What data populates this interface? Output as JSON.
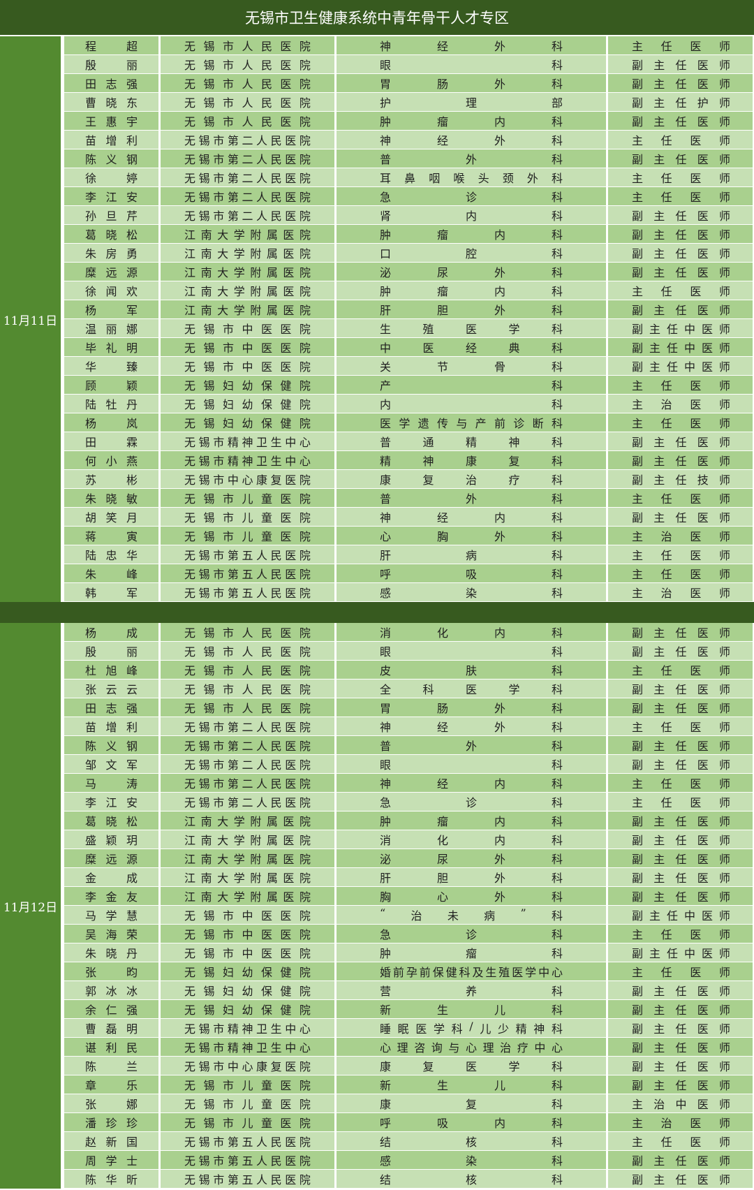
{
  "title": "无锡市卫生健康系统中青年骨干人才专区",
  "sections": [
    {
      "date": "11月11日",
      "rows": [
        {
          "name": "程超",
          "hospital": "无锡市人民医院",
          "dept": "神经外科",
          "title": "主任医师"
        },
        {
          "name": "殷丽",
          "hospital": "无锡市人民医院",
          "dept": "眼科",
          "title": "副主任医师"
        },
        {
          "name": "田志强",
          "hospital": "无锡市人民医院",
          "dept": "胃肠外科",
          "title": "副主任医师"
        },
        {
          "name": "曹晓东",
          "hospital": "无锡市人民医院",
          "dept": "护理部",
          "title": "副主任护师"
        },
        {
          "name": "王惠宇",
          "hospital": "无锡市人民医院",
          "dept": "肿瘤内科",
          "title": "副主任医师"
        },
        {
          "name": "苗增利",
          "hospital": "无锡市第二人民医院",
          "dept": "神经外科",
          "title": "主任医师"
        },
        {
          "name": "陈义钢",
          "hospital": "无锡市第二人民医院",
          "dept": "普外科",
          "title": "副主任医师"
        },
        {
          "name": "徐婷",
          "hospital": "无锡市第二人民医院",
          "dept": "耳鼻咽喉头颈外科",
          "title": "主任医师"
        },
        {
          "name": "李江安",
          "hospital": "无锡市第二人民医院",
          "dept": "急诊科",
          "title": "主任医师"
        },
        {
          "name": "孙旦芹",
          "hospital": "无锡市第二人民医院",
          "dept": "肾内科",
          "title": "副主任医师"
        },
        {
          "name": "葛晓松",
          "hospital": "江南大学附属医院",
          "dept": "肿瘤内科",
          "title": "副主任医师"
        },
        {
          "name": "朱房勇",
          "hospital": "江南大学附属医院",
          "dept": "口腔科",
          "title": "副主任医师"
        },
        {
          "name": "糜远源",
          "hospital": "江南大学附属医院",
          "dept": "泌尿外科",
          "title": "副主任医师"
        },
        {
          "name": "徐闻欢",
          "hospital": "江南大学附属医院",
          "dept": "肿瘤内科",
          "title": "主任医师"
        },
        {
          "name": "杨军",
          "hospital": "江南大学附属医院",
          "dept": "肝胆外科",
          "title": "副主任医师"
        },
        {
          "name": "温丽娜",
          "hospital": "无锡市中医医院",
          "dept": "生殖医学科",
          "title": "副主任中医师"
        },
        {
          "name": "毕礼明",
          "hospital": "无锡市中医医院",
          "dept": "中医经典科",
          "title": "副主任中医师"
        },
        {
          "name": "华臻",
          "hospital": "无锡市中医医院",
          "dept": "关节骨科",
          "title": "副主任中医师"
        },
        {
          "name": "顾颖",
          "hospital": "无锡妇幼保健院",
          "dept": "产科",
          "title": "主任医师"
        },
        {
          "name": "陆牡丹",
          "hospital": "无锡妇幼保健院",
          "dept": "内科",
          "title": "主治医师"
        },
        {
          "name": "杨岚",
          "hospital": "无锡妇幼保健院",
          "dept": "医学遗传与产前诊断科",
          "title": "主任医师"
        },
        {
          "name": "田霖",
          "hospital": "无锡市精神卫生中心",
          "dept": "普通精神科",
          "title": "副主任医师"
        },
        {
          "name": "何小燕",
          "hospital": "无锡市精神卫生中心",
          "dept": "精神康复科",
          "title": "副主任医师"
        },
        {
          "name": "苏彬",
          "hospital": "无锡市中心康复医院",
          "dept": "康复治疗科",
          "title": "副主任技师"
        },
        {
          "name": "朱晓敏",
          "hospital": "无锡市儿童医院",
          "dept": "普外科",
          "title": "主任医师"
        },
        {
          "name": "胡笑月",
          "hospital": "无锡市儿童医院",
          "dept": "神经内科",
          "title": "副主任医师"
        },
        {
          "name": "蒋寅",
          "hospital": "无锡市儿童医院",
          "dept": "心胸外科",
          "title": "主治医师"
        },
        {
          "name": "陆忠华",
          "hospital": "无锡市第五人民医院",
          "dept": "肝病科",
          "title": "主任医师"
        },
        {
          "name": "朱峰",
          "hospital": "无锡市第五人民医院",
          "dept": "呼吸科",
          "title": "主任医师"
        },
        {
          "name": "韩军",
          "hospital": "无锡市第五人民医院",
          "dept": "感染科",
          "title": "主治医师"
        }
      ]
    },
    {
      "date": "11月12日",
      "rows": [
        {
          "name": "杨成",
          "hospital": "无锡市人民医院",
          "dept": "消化内科",
          "title": "副主任医师"
        },
        {
          "name": "殷丽",
          "hospital": "无锡市人民医院",
          "dept": "眼科",
          "title": "副主任医师"
        },
        {
          "name": "杜旭峰",
          "hospital": "无锡市人民医院",
          "dept": "皮肤科",
          "title": "主任医师"
        },
        {
          "name": "张云云",
          "hospital": "无锡市人民医院",
          "dept": "全科医学科",
          "title": "副主任医师"
        },
        {
          "name": "田志强",
          "hospital": "无锡市人民医院",
          "dept": "胃肠外科",
          "title": "副主任医师"
        },
        {
          "name": "苗增利",
          "hospital": "无锡市第二人民医院",
          "dept": "神经外科",
          "title": "主任医师"
        },
        {
          "name": "陈义钢",
          "hospital": "无锡市第二人民医院",
          "dept": "普外科",
          "title": "副主任医师"
        },
        {
          "name": "邹文军",
          "hospital": "无锡市第二人民医院",
          "dept": "眼科",
          "title": "副主任医师"
        },
        {
          "name": "马涛",
          "hospital": "无锡市第二人民医院",
          "dept": "神经内科",
          "title": "主任医师"
        },
        {
          "name": "李江安",
          "hospital": "无锡市第二人民医院",
          "dept": "急诊科",
          "title": "主任医师"
        },
        {
          "name": "葛晓松",
          "hospital": "江南大学附属医院",
          "dept": "肿瘤内科",
          "title": "副主任医师"
        },
        {
          "name": "盛颖玥",
          "hospital": "江南大学附属医院",
          "dept": "消化内科",
          "title": "副主任医师"
        },
        {
          "name": "糜远源",
          "hospital": "江南大学附属医院",
          "dept": "泌尿外科",
          "title": "副主任医师"
        },
        {
          "name": "金成",
          "hospital": "江南大学附属医院",
          "dept": "肝胆外科",
          "title": "副主任医师"
        },
        {
          "name": "李金友",
          "hospital": "江南大学附属医院",
          "dept": "胸心外科",
          "title": "副主任医师"
        },
        {
          "name": "马学慧",
          "hospital": "无锡市中医医院",
          "dept": "“治未病”科",
          "title": "副主任中医师"
        },
        {
          "name": "吴海荣",
          "hospital": "无锡市中医医院",
          "dept": "急诊科",
          "title": "主任医师"
        },
        {
          "name": "朱晓丹",
          "hospital": "无锡市中医医院",
          "dept": "肿瘤科",
          "title": "副主任中医师"
        },
        {
          "name": "张昀",
          "hospital": "无锡妇幼保健院",
          "dept": "婚前孕前保健科及生殖医学中心",
          "title": "主任医师"
        },
        {
          "name": "郭冰冰",
          "hospital": "无锡妇幼保健院",
          "dept": "营养科",
          "title": "副主任医师"
        },
        {
          "name": "余仁强",
          "hospital": "无锡妇幼保健院",
          "dept": "新生儿科",
          "title": "副主任医师"
        },
        {
          "name": "曹磊明",
          "hospital": "无锡市精神卫生中心",
          "dept": "睡眠医学科/儿少精神科",
          "title": "副主任医师"
        },
        {
          "name": "谌利民",
          "hospital": "无锡市精神卫生中心",
          "dept": "心理咨询与心理治疗中心",
          "title": "副主任医师"
        },
        {
          "name": "陈兰",
          "hospital": "无锡市中心康复医院",
          "dept": "康复医学科",
          "title": "副主任医师"
        },
        {
          "name": "章乐",
          "hospital": "无锡市儿童医院",
          "dept": "新生儿科",
          "title": "副主任医师"
        },
        {
          "name": "张娜",
          "hospital": "无锡市儿童医院",
          "dept": "康复科",
          "title": "主治中医师"
        },
        {
          "name": "潘珍珍",
          "hospital": "无锡市儿童医院",
          "dept": "呼吸内科",
          "title": "主治医师"
        },
        {
          "name": "赵新国",
          "hospital": "无锡市第五人民医院",
          "dept": "结核科",
          "title": "主任医师"
        },
        {
          "name": "周学士",
          "hospital": "无锡市第五人民医院",
          "dept": "感染科",
          "title": "副主任医师"
        },
        {
          "name": "陈华昕",
          "hospital": "无锡市第五人民医院",
          "dept": "结核科",
          "title": "副主任医师"
        }
      ]
    }
  ]
}
